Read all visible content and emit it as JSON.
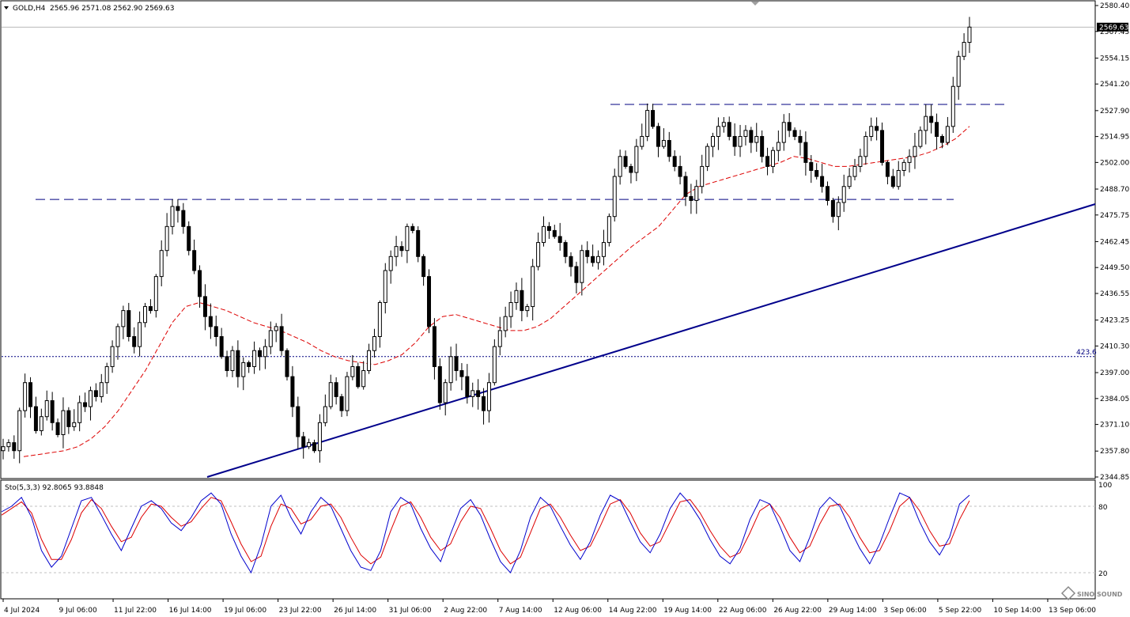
{
  "window": {
    "symbol_header": "GOLD,H4",
    "ohlc_header": "2565.96 2571.08 2562.90 2569.63",
    "price_label": "2569.63"
  },
  "colors": {
    "candle": "#000000",
    "ma": "#dd0000",
    "trendline": "#00008b",
    "dash_levels": "#000080",
    "stoch_main": "#0000cd",
    "stoch_signal": "#dd0000",
    "grid": "#c0c0c0",
    "background": "#ffffff"
  },
  "chart_data": [
    {
      "type": "candlestick",
      "title": "GOLD,H4",
      "price_ticks": [
        "2580.40",
        "2567.45",
        "2554.15",
        "2541.20",
        "2527.90",
        "2514.95",
        "2502.00",
        "2488.70",
        "2475.75",
        "2462.45",
        "2449.50",
        "2436.55",
        "2423.25",
        "2410.30",
        "2397.00",
        "2384.05",
        "2371.10",
        "2357.80",
        "2344.85"
      ],
      "date_ticks": [
        "4 Jul 2024",
        "9 Jul 06:00",
        "11 Jul 22:00",
        "16 Jul 14:00",
        "19 Jul 06:00",
        "23 Jul 22:00",
        "26 Jul 14:00",
        "31 Jul 06:00",
        "2 Aug 22:00",
        "7 Aug 14:00",
        "12 Aug 06:00",
        "14 Aug 22:00",
        "19 Aug 14:00",
        "22 Aug 06:00",
        "26 Aug 22:00",
        "29 Aug 14:00",
        "3 Sep 06:00",
        "5 Sep 22:00",
        "10 Sep 14:00",
        "13 Sep 06:00"
      ],
      "ylim": [
        2344.85,
        2580.4
      ],
      "last_price": 2569.63,
      "horizontal_levels": [
        {
          "type": "dashed",
          "price": 2531.0
        },
        {
          "type": "dashed",
          "price": 2483.5
        },
        {
          "type": "dotted",
          "price": 2405.0,
          "label": "423.6"
        }
      ],
      "trendline": {
        "from": {
          "date": "22 Jul",
          "price": 2344.85
        },
        "to": {
          "date": "13 Sep",
          "price": 2478.0
        }
      },
      "close_series": [
        2360,
        2362,
        2358,
        2378,
        2392,
        2380,
        2368,
        2375,
        2383,
        2372,
        2366,
        2378,
        2370,
        2372,
        2382,
        2380,
        2388,
        2385,
        2392,
        2400,
        2410,
        2420,
        2428,
        2415,
        2410,
        2422,
        2430,
        2428,
        2445,
        2458,
        2470,
        2480,
        2478,
        2470,
        2458,
        2448,
        2435,
        2425,
        2420,
        2415,
        2405,
        2398,
        2408,
        2395,
        2402,
        2400,
        2408,
        2405,
        2410,
        2418,
        2420,
        2408,
        2395,
        2380,
        2365,
        2360,
        2362,
        2358,
        2372,
        2380,
        2392,
        2385,
        2378,
        2395,
        2400,
        2390,
        2398,
        2408,
        2415,
        2432,
        2448,
        2455,
        2460,
        2458,
        2470,
        2468,
        2455,
        2445,
        2420,
        2400,
        2382,
        2392,
        2405,
        2398,
        2395,
        2385,
        2388,
        2385,
        2378,
        2392,
        2410,
        2418,
        2425,
        2432,
        2438,
        2428,
        2430,
        2450,
        2462,
        2470,
        2468,
        2465,
        2462,
        2455,
        2450,
        2442,
        2458,
        2455,
        2452,
        2455,
        2462,
        2475,
        2495,
        2505,
        2500,
        2497,
        2510,
        2515,
        2528,
        2520,
        2510,
        2513,
        2505,
        2500,
        2495,
        2485,
        2483,
        2490,
        2500,
        2510,
        2515,
        2520,
        2522,
        2515,
        2510,
        2515,
        2518,
        2512,
        2515,
        2505,
        2500,
        2508,
        2512,
        2522,
        2518,
        2515,
        2512,
        2502,
        2498,
        2495,
        2490,
        2483,
        2475,
        2482,
        2490,
        2495,
        2500,
        2505,
        2515,
        2520,
        2518,
        2502,
        2495,
        2490,
        2498,
        2502,
        2505,
        2510,
        2518,
        2525,
        2522,
        2515,
        2512,
        2520,
        2540,
        2555,
        2562,
        2569.63
      ],
      "ma_series": [
        2355,
        2356,
        2357,
        2358,
        2360,
        2364,
        2370,
        2378,
        2388,
        2398,
        2410,
        2422,
        2430,
        2432,
        2430,
        2428,
        2425,
        2422,
        2420,
        2418,
        2415,
        2412,
        2408,
        2405,
        2403,
        2402,
        2401,
        2403,
        2406,
        2412,
        2420,
        2425,
        2426,
        2424,
        2422,
        2420,
        2418,
        2418,
        2420,
        2424,
        2430,
        2436,
        2442,
        2448,
        2454,
        2460,
        2465,
        2470,
        2478,
        2486,
        2490,
        2492,
        2494,
        2496,
        2498,
        2500,
        2502,
        2505,
        2504,
        2502,
        2500,
        2500,
        2501,
        2502,
        2503,
        2504,
        2505,
        2507,
        2510,
        2514,
        2520
      ],
      "stochastic": {
        "label": "Sto(5,3,3) 92.8065 93.8848",
        "levels": [
          20,
          80
        ],
        "ticks": [
          "100",
          "80",
          "20"
        ],
        "main": [
          75,
          80,
          88,
          70,
          40,
          25,
          35,
          60,
          85,
          88,
          72,
          55,
          40,
          60,
          80,
          85,
          78,
          65,
          58,
          70,
          85,
          92,
          82,
          55,
          35,
          20,
          45,
          80,
          90,
          70,
          55,
          75,
          88,
          80,
          60,
          40,
          25,
          22,
          40,
          75,
          88,
          82,
          60,
          42,
          30,
          55,
          78,
          86,
          72,
          50,
          30,
          20,
          40,
          70,
          88,
          80,
          62,
          45,
          32,
          48,
          72,
          90,
          85,
          66,
          48,
          38,
          55,
          78,
          92,
          82,
          68,
          50,
          35,
          28,
          42,
          68,
          86,
          82,
          62,
          40,
          30,
          52,
          78,
          88,
          80,
          60,
          42,
          28,
          46,
          70,
          92,
          88,
          66,
          48,
          36,
          52,
          82,
          90
        ],
        "signal": [
          72,
          78,
          84,
          74,
          50,
          32,
          32,
          50,
          74,
          86,
          78,
          62,
          48,
          52,
          70,
          82,
          80,
          70,
          62,
          66,
          78,
          88,
          85,
          66,
          46,
          30,
          35,
          62,
          82,
          78,
          64,
          68,
          80,
          82,
          70,
          52,
          36,
          28,
          34,
          58,
          80,
          84,
          70,
          52,
          40,
          46,
          66,
          80,
          78,
          60,
          40,
          28,
          34,
          56,
          78,
          82,
          70,
          54,
          40,
          44,
          62,
          82,
          86,
          74,
          56,
          44,
          48,
          66,
          84,
          86,
          74,
          58,
          44,
          34,
          38,
          56,
          76,
          82,
          70,
          52,
          38,
          44,
          64,
          80,
          82,
          70,
          52,
          38,
          40,
          58,
          80,
          88,
          76,
          58,
          44,
          46,
          68,
          85
        ]
      }
    }
  ],
  "watermark": {
    "icon": "sinosound-logo-icon",
    "text": "SINO SOUND"
  }
}
